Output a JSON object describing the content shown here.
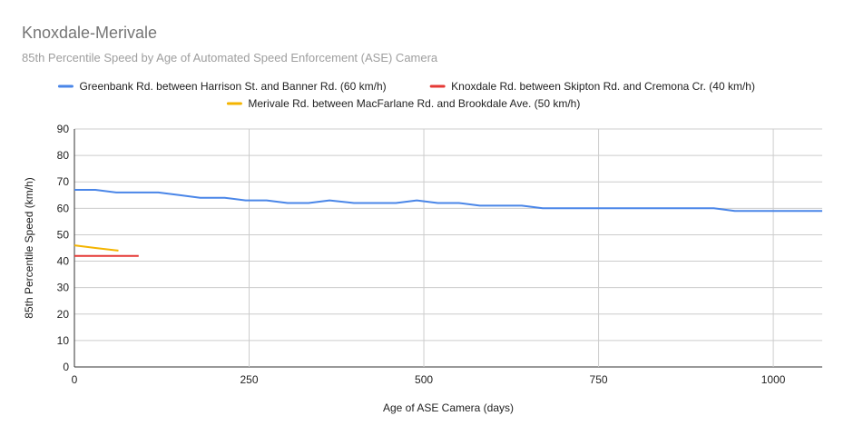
{
  "chart_data": {
    "type": "line",
    "title": "Knoxdale-Merivale",
    "subtitle": "85th Percentile Speed by Age of Automated Speed Enforcement (ASE) Camera",
    "xlabel": "Age of ASE Camera (days)",
    "ylabel": "85th Percentile Speed (km/h)",
    "xlim": [
      0,
      1070
    ],
    "ylim": [
      0,
      90
    ],
    "xticks": [
      0,
      250,
      500,
      750,
      1000
    ],
    "yticks": [
      0,
      10,
      20,
      30,
      40,
      50,
      60,
      70,
      80,
      90
    ],
    "grid": true,
    "legend_position": "top",
    "series": [
      {
        "name": "Greenbank Rd. between Harrison St. and Banner Rd. (60 km/h)",
        "color": "#4a86e8",
        "x": [
          0,
          30,
          60,
          90,
          120,
          150,
          180,
          215,
          245,
          275,
          305,
          335,
          365,
          400,
          430,
          460,
          490,
          520,
          550,
          580,
          610,
          640,
          670,
          700,
          730,
          760,
          790,
          820,
          850,
          880,
          915,
          945,
          975,
          1005,
          1035,
          1070
        ],
        "y": [
          67,
          67,
          66,
          66,
          66,
          65,
          64,
          64,
          63,
          63,
          62,
          62,
          63,
          62,
          62,
          62,
          63,
          62,
          62,
          61,
          61,
          61,
          60,
          60,
          60,
          60,
          60,
          60,
          60,
          60,
          60,
          59,
          59,
          59,
          59,
          59
        ]
      },
      {
        "name": "Knoxdale Rd. between Skipton Rd. and Cremona Cr. (40 km/h)",
        "color": "#e53935",
        "x": [
          0,
          30,
          60,
          92
        ],
        "y": [
          42,
          42,
          42,
          42
        ]
      },
      {
        "name": "Merivale Rd. between MacFarlane Rd. and Brookdale Ave. (50 km/h)",
        "color": "#f4b400",
        "x": [
          0,
          30,
          63
        ],
        "y": [
          46,
          45,
          44
        ]
      }
    ]
  }
}
